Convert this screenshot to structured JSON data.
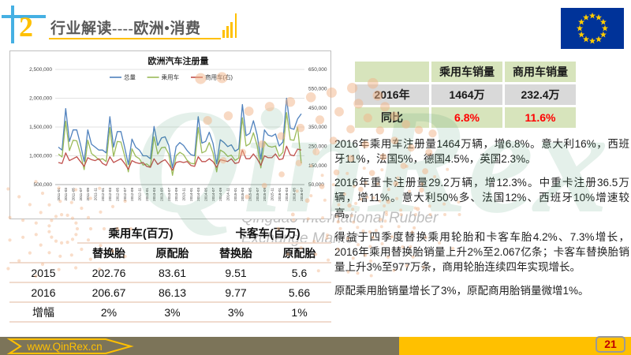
{
  "header": {
    "number": "2",
    "title": "行业解读----欧洲•消费"
  },
  "chart_data": {
    "type": "line",
    "title": "欧洲汽车注册量",
    "legend_position": "top",
    "grid": true,
    "left_axis": {
      "min": 500000,
      "max": 2500000,
      "step": 500000
    },
    "right_axis": {
      "min": 50000,
      "max": 650000,
      "step": 100000
    },
    "x": [
      "2011-01",
      "2011-02",
      "2011-03",
      "2011-04",
      "2011-05",
      "2011-06",
      "2011-07",
      "2011-08",
      "2011-09",
      "2011-10",
      "2011-11",
      "2011-12",
      "2012-01",
      "2012-02",
      "2012-03",
      "2012-04",
      "2012-05",
      "2012-06",
      "2012-07",
      "2012-08",
      "2012-09",
      "2012-10",
      "2012-11",
      "2012-12",
      "2013-01",
      "2013-02",
      "2013-03",
      "2013-04",
      "2013-05",
      "2013-06",
      "2013-07",
      "2013-08",
      "2013-09",
      "2013-10",
      "2013-11",
      "2013-12",
      "2014-01",
      "2014-02",
      "2014-03",
      "2014-04",
      "2014-05",
      "2014-06",
      "2014-07",
      "2014-08",
      "2014-09",
      "2014-10",
      "2014-11",
      "2014-12",
      "2015-01",
      "2015-02",
      "2015-03",
      "2015-04",
      "2015-05",
      "2015-06",
      "2015-07",
      "2015-08",
      "2015-09",
      "2015-10",
      "2015-11",
      "2015-12",
      "2016-01",
      "2016-02",
      "2016-03",
      "2016-04",
      "2016-05",
      "2016-06",
      "2016-07"
    ],
    "series": [
      {
        "name": "总量",
        "axis": "left",
        "color": "#4F81BD",
        "values": [
          1150000,
          1100000,
          1820000,
          1250000,
          1450000,
          1450000,
          1200000,
          900000,
          1450000,
          1200000,
          1150000,
          1100000,
          1100000,
          1050000,
          1680000,
          1150000,
          1420000,
          1420000,
          1150000,
          850000,
          1290000,
          1150000,
          1100000,
          1000000,
          1000000,
          950000,
          1510000,
          1180000,
          1310000,
          1330000,
          1180000,
          790000,
          1160000,
          1230000,
          1180000,
          1090000,
          1020000,
          1000000,
          1680000,
          1220000,
          1250000,
          1410000,
          1220000,
          860000,
          1280000,
          1230000,
          1160000,
          1190000,
          1080000,
          1120000,
          1890000,
          1350000,
          1390000,
          1610000,
          1360000,
          940000,
          1450000,
          1360000,
          1340000,
          1380000,
          1170000,
          1240000,
          2000000,
          1480000,
          1460000,
          1640000,
          1730000
        ]
      },
      {
        "name": "乘用车",
        "axis": "left",
        "color": "#9BBB59",
        "values": [
          1030000,
          980000,
          1600000,
          1090000,
          1270000,
          1260000,
          1040000,
          760000,
          1270000,
          1040000,
          990000,
          930000,
          950000,
          900000,
          1490000,
          990000,
          1250000,
          1240000,
          1000000,
          720000,
          1120000,
          990000,
          950000,
          840000,
          860000,
          810000,
          1330000,
          1030000,
          1140000,
          1150000,
          1030000,
          660000,
          1000000,
          1060000,
          1020000,
          920000,
          870000,
          860000,
          1490000,
          1050000,
          1080000,
          1230000,
          1050000,
          720000,
          1100000,
          1060000,
          990000,
          1010000,
          920000,
          960000,
          1660000,
          1170000,
          1210000,
          1400000,
          1180000,
          790000,
          1250000,
          1170000,
          1150000,
          1170000,
          990000,
          1060000,
          1750000,
          1280000,
          1270000,
          1500000,
          870000
        ]
      },
      {
        "name": "商用车(右)",
        "axis": "right",
        "color": "#C0504D",
        "values": [
          165000,
          160000,
          215000,
          175000,
          185000,
          195000,
          170000,
          145000,
          190000,
          180000,
          175000,
          185000,
          160000,
          150000,
          195000,
          165000,
          175000,
          185000,
          160000,
          130000,
          175000,
          165000,
          160000,
          165000,
          145000,
          140000,
          185000,
          155000,
          170000,
          180000,
          155000,
          125000,
          165000,
          170000,
          165000,
          170000,
          150000,
          145000,
          195000,
          170000,
          170000,
          185000,
          170000,
          140000,
          180000,
          175000,
          170000,
          185000,
          160000,
          165000,
          230000,
          185000,
          185000,
          210000,
          185000,
          150000,
          200000,
          190000,
          190000,
          210000,
          180000,
          185000,
          250000,
          205000,
          200000,
          235000,
          230000
        ]
      }
    ]
  },
  "sales_table": {
    "columns": [
      "",
      "乘用车销量",
      "商用车销量"
    ],
    "rows": [
      {
        "label": "2016年",
        "values": [
          "1464万",
          "232.4万"
        ],
        "red": false
      },
      {
        "label": "同比",
        "values": [
          "6.8%",
          "11.6%"
        ],
        "red": true
      }
    ]
  },
  "paragraphs": [
    "2016年乘用车注册量1464万辆，增6.8%。意大利16%，西班牙11%，法国5%，德国4.5%，英国2.3%。",
    "2016年重卡注册量29.2万辆，增12.3%。中重卡注册36.5万辆，增11%。意大利50%多、法国12%、西班牙10%增速较高。",
    "得益于四季度替换乘用轮胎和卡客车胎4.2%、7.3%增长，2016年乘用替换胎销量上升2%至2.067亿条；卡客车替换胎销量上升3%至977万条，商用轮胎连续四年实现增长。",
    "原配乘用胎销量增长了3%，原配商用胎销量微增1%。"
  ],
  "tyre_table": {
    "group_headers": [
      "乘用车(百万)",
      "卡客车(百万)"
    ],
    "sub_headers": [
      "替换胎",
      "原配胎",
      "替换胎",
      "原配胎"
    ],
    "rows": [
      {
        "label": "2015",
        "values": [
          "202.76",
          "83.61",
          "9.51",
          "5.6"
        ]
      },
      {
        "label": "2016",
        "values": [
          "206.67",
          "86.13",
          "9.77",
          "5.66"
        ]
      },
      {
        "label": "增幅",
        "values": [
          "2%",
          "3%",
          "3%",
          "1%"
        ]
      }
    ]
  },
  "watermark": {
    "brand": "QinRex",
    "line1": "Qingdao International Rubber",
    "line2": "Exchange Market"
  },
  "footer": {
    "url": "www.QinRex.cn",
    "page": "21"
  },
  "colors": {
    "accent_yellow": "#FFC000",
    "accent_blue": "#45B0E3",
    "olive_bar": "#7C7459",
    "badge_text_red": "#C00000",
    "table_green": "#D7E4BC",
    "table_gray": "#D9D9D9",
    "flag_blue": "#003399",
    "flag_star": "#FFCC00"
  }
}
